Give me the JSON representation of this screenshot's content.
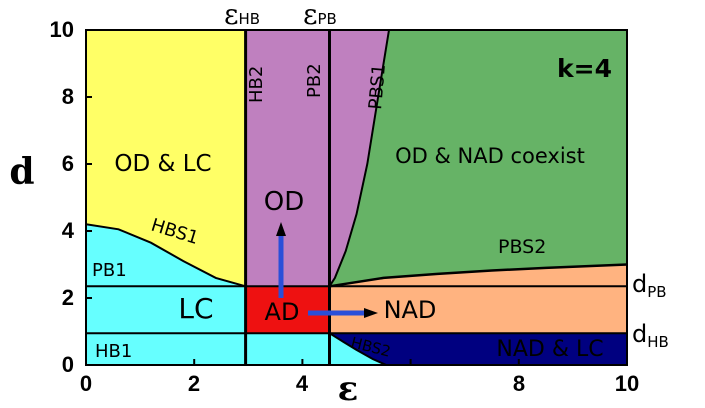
{
  "chart_data": {
    "type": "phase-diagram",
    "title": "k=4",
    "xlabel": "ε",
    "ylabel": "d",
    "xlim": [
      0,
      10
    ],
    "ylim": [
      0,
      10
    ],
    "xticks": [
      "0",
      "2",
      "4",
      "6",
      "8",
      "10"
    ],
    "yticks": [
      "0",
      "2",
      "4",
      "6",
      "8",
      "10"
    ],
    "thresholds": {
      "eps_HB": {
        "label": "ε",
        "sub": "HB",
        "x": 2.95
      },
      "eps_PB": {
        "label": "ε",
        "sub": "PB",
        "x": 4.5
      },
      "d_PB": {
        "label": "d",
        "sub": "PB",
        "y": 2.35
      },
      "d_HB": {
        "label": "d",
        "sub": "HB",
        "y": 0.95
      }
    },
    "regions": {
      "od_lc": "OD & LC",
      "od": "OD",
      "od_nad": "OD & NAD coexist",
      "lc": "LC",
      "ad": "AD",
      "nad": "NAD",
      "nad_lc": "NAD & LC"
    },
    "boundaries": {
      "HB1": "HB1",
      "HB2": "HB2",
      "PB1": "PB1",
      "PB2": "PB2",
      "HBS1": "HBS1",
      "HBS2": "HBS2",
      "PBS1": "PBS1",
      "PBS2": "PBS2"
    },
    "curves": {
      "HBS1": {
        "x": [
          0,
          0.6,
          1.2,
          1.8,
          2.4,
          2.95
        ],
        "y": [
          4.2,
          4.05,
          3.65,
          3.1,
          2.6,
          2.35
        ]
      },
      "PBS1": {
        "x": [
          4.5,
          4.6,
          4.8,
          5.0,
          5.2,
          5.4,
          5.6
        ],
        "y": [
          2.35,
          2.6,
          3.4,
          4.5,
          6.0,
          8.0,
          10
        ]
      },
      "PBS2": {
        "x": [
          4.5,
          5.5,
          6.5,
          7.5,
          8.5,
          10
        ],
        "y": [
          2.35,
          2.6,
          2.72,
          2.82,
          2.9,
          3.0
        ]
      },
      "HBS2": {
        "x": [
          4.5,
          4.75,
          5.0,
          5.3,
          5.55
        ],
        "y": [
          0.95,
          0.7,
          0.45,
          0.18,
          0
        ]
      }
    },
    "colors": {
      "od_lc": "#ffff66",
      "od": "#bf80bf",
      "od_nad": "#66b366",
      "lc": "#66ffff",
      "ad": "#ee1111",
      "nad": "#ffb380",
      "nad_lc": "#000080",
      "arrow": "#2a4fd9",
      "ad_text": "#ffff33"
    }
  }
}
